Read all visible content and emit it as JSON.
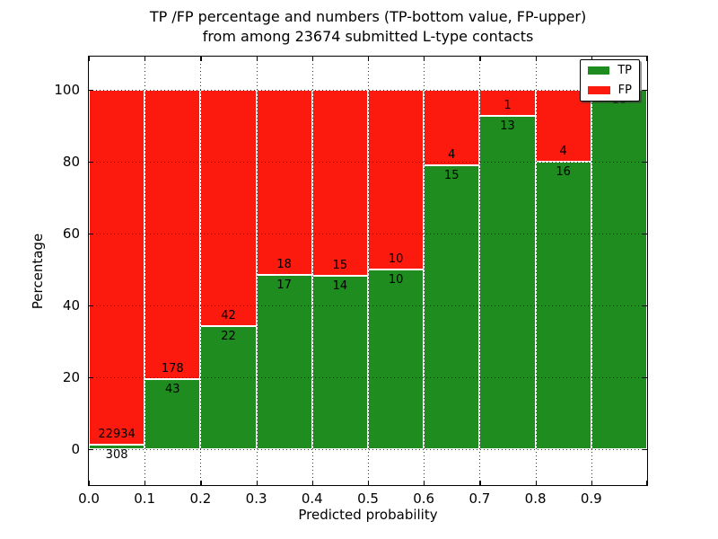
{
  "title": {
    "line1": "TP /FP percentage and numbers (TP-bottom value, FP-upper)",
    "line2": "from among 23674 submitted L-type contacts"
  },
  "y_axis": {
    "label": "Percentage",
    "ticks": [
      0,
      20,
      40,
      60,
      80,
      100
    ]
  },
  "x_axis": {
    "label": "Predicted probability",
    "tick_labels": [
      "0.0",
      "0.1",
      "0.2",
      "0.3",
      "0.4",
      "0.5",
      "0.6",
      "0.7",
      "0.8",
      "0.9"
    ]
  },
  "legend": {
    "items": [
      {
        "label": "TP",
        "color": "#1e8c1e"
      },
      {
        "label": "FP",
        "color": "#fc190e"
      }
    ]
  },
  "colors": {
    "tp_green": "#1e8c1e",
    "fp_red": "#fc190e",
    "grid": "rgba(0,0,0,0.8)"
  },
  "chart_data": {
    "type": "bar",
    "stacked": true,
    "normalized_to_percent": true,
    "title": "TP /FP percentage and numbers (TP-bottom value, FP-upper) from among 23674 submitted L-type contacts",
    "xlabel": "Predicted probability",
    "ylabel": "Percentage",
    "bin_edges": [
      0.0,
      0.1,
      0.2,
      0.3,
      0.4,
      0.5,
      0.6,
      0.7,
      0.8,
      0.9,
      1.0
    ],
    "series": [
      {
        "name": "TP",
        "color": "#1e8c1e",
        "counts": [
          308,
          43,
          22,
          17,
          14,
          10,
          15,
          13,
          16,
          10
        ]
      },
      {
        "name": "FP",
        "color": "#fc190e",
        "counts": [
          22934,
          178,
          42,
          18,
          15,
          10,
          4,
          1,
          4,
          0
        ]
      }
    ],
    "tp_percent_per_bin": [
      1.33,
      19.46,
      34.38,
      48.57,
      48.28,
      50.0,
      78.95,
      92.86,
      80.0,
      100.0
    ],
    "total_submitted": 23674,
    "ylim": [
      -10,
      109
    ],
    "xlim": [
      0.0,
      1.0
    ],
    "grid": true,
    "legend_position": "upper right"
  }
}
